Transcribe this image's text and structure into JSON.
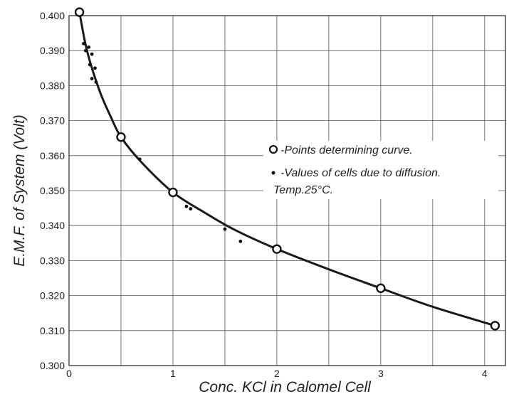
{
  "chart_data": {
    "type": "scatter",
    "xlabel": "Conc. KCl in Calomel Cell",
    "ylabel": "E.M.F. of System (Volt)",
    "xlim": [
      0,
      4.2
    ],
    "ylim": [
      0.3,
      0.4
    ],
    "x_ticks": [
      0,
      1,
      2,
      3,
      4
    ],
    "y_ticks": [
      0.3,
      0.31,
      0.32,
      0.33,
      0.34,
      0.35,
      0.36,
      0.37,
      0.38,
      0.39,
      0.4
    ],
    "x_tick_labels": [
      "0",
      "1",
      "2",
      "3",
      "4"
    ],
    "y_tick_labels": [
      "0.300",
      "0.310",
      "0.320",
      "0.330",
      "0.340",
      "0.350",
      "0.360",
      "0.370",
      "0.380",
      "0.390",
      "0.400"
    ],
    "grid": true,
    "legend_position": "center-right",
    "series": [
      {
        "name": "-Points determining curve.",
        "marker": "open-circle",
        "points": [
          {
            "x": 0.1,
            "y": 0.401
          },
          {
            "x": 0.5,
            "y": 0.3653
          },
          {
            "x": 1.0,
            "y": 0.3495
          },
          {
            "x": 2.0,
            "y": 0.3333
          },
          {
            "x": 3.0,
            "y": 0.3221
          },
          {
            "x": 4.1,
            "y": 0.3114
          }
        ]
      },
      {
        "name": "-Values of cells due to diffusion.",
        "marker": "filled-dot",
        "points": [
          {
            "x": 0.14,
            "y": 0.392
          },
          {
            "x": 0.16,
            "y": 0.39
          },
          {
            "x": 0.19,
            "y": 0.391
          },
          {
            "x": 0.2,
            "y": 0.386
          },
          {
            "x": 0.22,
            "y": 0.389
          },
          {
            "x": 0.25,
            "y": 0.385
          },
          {
            "x": 0.22,
            "y": 0.382
          },
          {
            "x": 0.26,
            "y": 0.381
          },
          {
            "x": 0.68,
            "y": 0.359
          },
          {
            "x": 1.13,
            "y": 0.3455
          },
          {
            "x": 1.17,
            "y": 0.3448
          },
          {
            "x": 1.5,
            "y": 0.339
          },
          {
            "x": 1.65,
            "y": 0.3355
          }
        ]
      }
    ],
    "curve": [
      {
        "x": 0.1,
        "y": 0.401
      },
      {
        "x": 0.15,
        "y": 0.393
      },
      {
        "x": 0.2,
        "y": 0.387
      },
      {
        "x": 0.3,
        "y": 0.378
      },
      {
        "x": 0.4,
        "y": 0.3712
      },
      {
        "x": 0.5,
        "y": 0.3653
      },
      {
        "x": 0.7,
        "y": 0.358
      },
      {
        "x": 1.0,
        "y": 0.3495
      },
      {
        "x": 1.3,
        "y": 0.3438
      },
      {
        "x": 1.6,
        "y": 0.3387
      },
      {
        "x": 2.0,
        "y": 0.3333
      },
      {
        "x": 2.5,
        "y": 0.3275
      },
      {
        "x": 3.0,
        "y": 0.3221
      },
      {
        "x": 3.5,
        "y": 0.3168
      },
      {
        "x": 4.1,
        "y": 0.3114
      }
    ],
    "legend_extra": "Temp.25°C."
  }
}
